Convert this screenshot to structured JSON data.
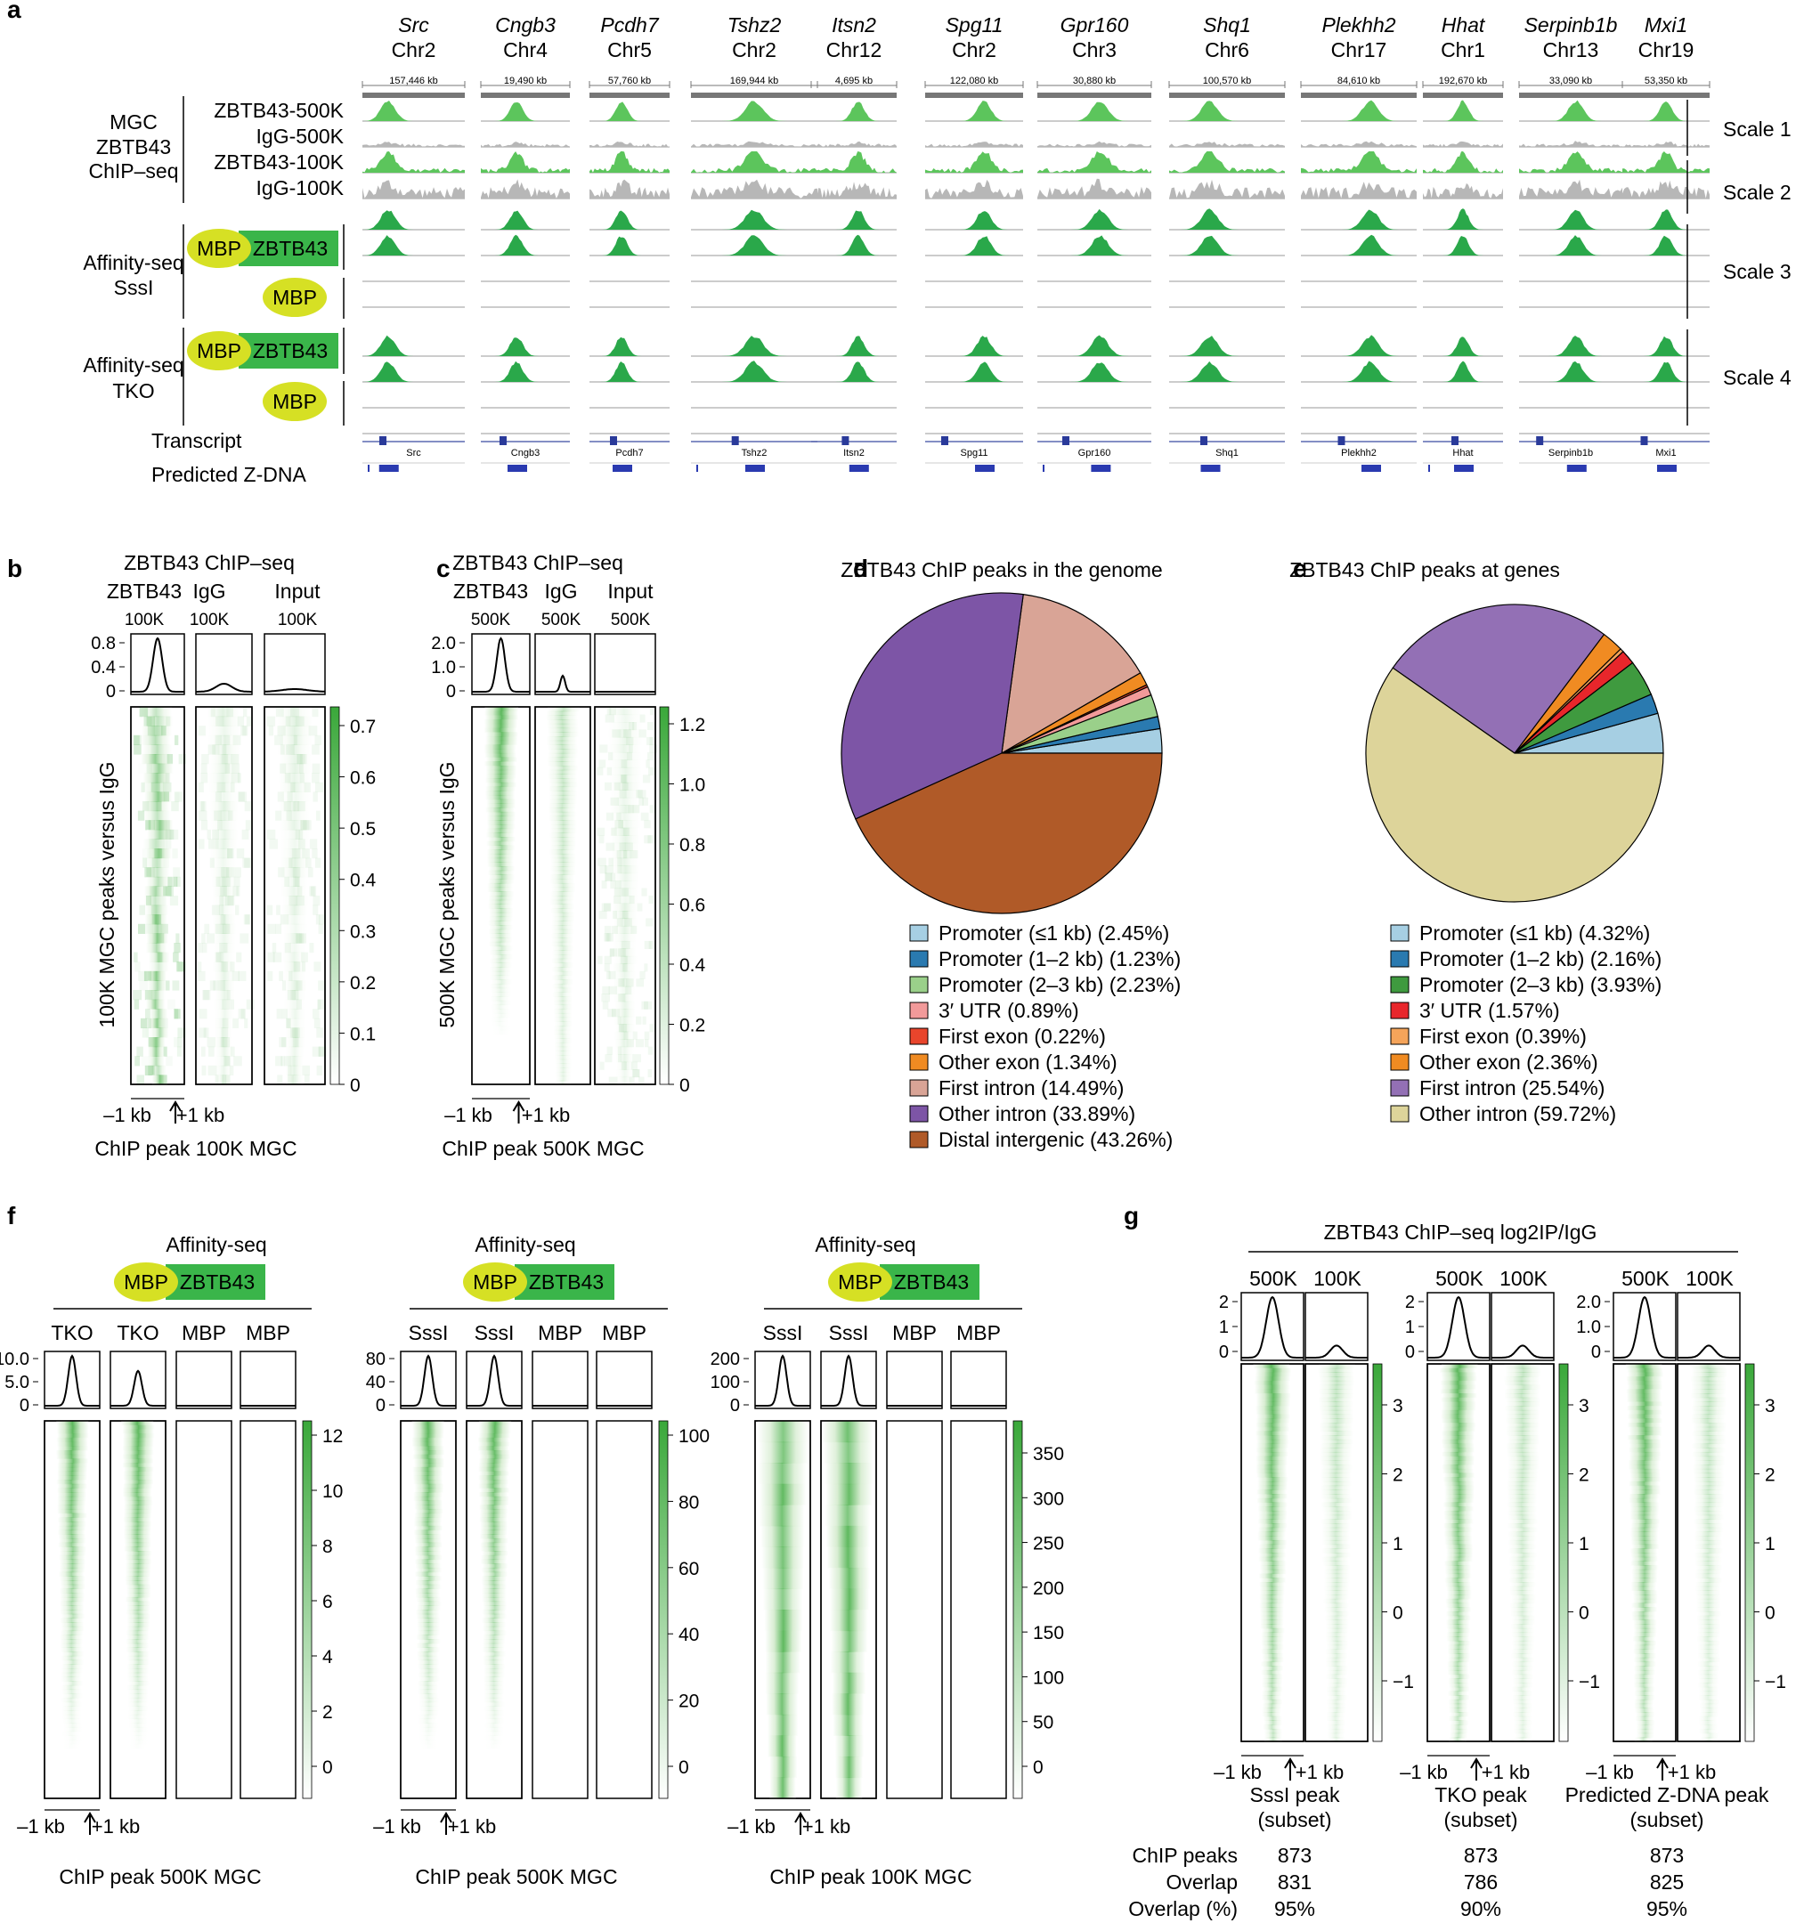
{
  "panel_letters": [
    "a",
    "b",
    "c",
    "d",
    "e",
    "f",
    "g"
  ],
  "panel_a": {
    "genes": [
      "Src",
      "Cngb3",
      "Pcdh7",
      "Tshz2",
      "Itsn2",
      "Spg11",
      "Gpr160",
      "Shq1",
      "Plekhh2",
      "Hhat",
      "Serpinb1b",
      "Mxi1"
    ],
    "chromosomes": [
      "Chr2",
      "Chr4",
      "Chr5",
      "Chr2",
      "Chr12",
      "Chr2",
      "Chr3",
      "Chr6",
      "Chr17",
      "Chr1",
      "Chr13",
      "Chr19"
    ],
    "coordinates": [
      "157,446 kb",
      "19,490 kb",
      "57,760 kb",
      "169,944 kb",
      "4,695 kb",
      "122,080 kb",
      "30,880 kb",
      "100,570 kb",
      "84,610 kb",
      "192,670 kb",
      "33,090 kb",
      "53,350 kb"
    ],
    "transcript_labels": [
      "Src",
      "Cngb3",
      "Pcdh7",
      "Tshz2",
      "Itsn2",
      "Spg11",
      "Gpr160",
      "Shq1",
      "Plekhh2",
      "Hhat",
      "Serpinb1b",
      "Mxi1"
    ],
    "group1_label": [
      "MGC",
      "ZBTB43",
      "ChIP–seq"
    ],
    "track_labels": [
      "ZBTB43-500K",
      "IgG-500K",
      "ZBTB43-100K",
      "IgG-100K"
    ],
    "group2_label": [
      "Affinity-seq",
      "SssI"
    ],
    "group3_label": [
      "Affinity-seq",
      "TKO"
    ],
    "mbp": "MBP",
    "zbtb43": "ZBTB43",
    "transcript": "Transcript",
    "predicted_zdna": "Predicted Z-DNA",
    "scales": [
      "Scale 1",
      "Scale 2",
      "Scale 3",
      "Scale 4"
    ]
  },
  "panel_b": {
    "title": "ZBTB43 ChIP–seq",
    "columns": [
      [
        "ZBTB43",
        "100K"
      ],
      [
        "IgG",
        "100K"
      ],
      [
        "Input",
        "100K"
      ]
    ],
    "profile_ticks": [
      "0.8",
      "0.4",
      "0"
    ],
    "colorbar_ticks": [
      "0.7",
      "0.6",
      "0.5",
      "0.4",
      "0.3",
      "0.2",
      "0.1",
      "0"
    ],
    "ylabel": "100K MGC peaks versus IgG",
    "x_left": "–1 kb",
    "x_right": "+1 kb",
    "xlabel": "ChIP peak 100K MGC"
  },
  "panel_c": {
    "title": "ZBTB43 ChIP–seq",
    "columns": [
      [
        "ZBTB43",
        "500K"
      ],
      [
        "IgG",
        "500K"
      ],
      [
        "Input",
        "500K"
      ]
    ],
    "profile_ticks": [
      "2.0",
      "1.0",
      "0"
    ],
    "colorbar_ticks": [
      "1.2",
      "1.0",
      "0.8",
      "0.6",
      "0.4",
      "0.2",
      "0"
    ],
    "ylabel": "500K MGC peaks versus IgG",
    "x_left": "–1 kb",
    "x_right": "+1 kb",
    "xlabel": "ChIP peak 500K MGC"
  },
  "chart_data": [
    {
      "type": "pie",
      "title": "ZBTB43 ChIP peaks in the genome",
      "labels": [
        "Promoter (≤1 kb) (2.45%)",
        "Promoter (1–2 kb) (1.23%)",
        "Promoter (2–3 kb) (2.23%)",
        "3′ UTR (0.89%)",
        "First exon (0.22%)",
        "Other exon (1.34%)",
        "First intron (14.49%)",
        "Other intron (33.89%)",
        "Distal intergenic (43.26%)"
      ],
      "values": [
        2.45,
        1.23,
        2.23,
        0.89,
        0.22,
        1.34,
        14.49,
        33.89,
        43.26
      ],
      "colors": [
        "#a6cfe3",
        "#2a7ab0",
        "#9ad08a",
        "#f29a9a",
        "#e8452c",
        "#f08b22",
        "#d9a496",
        "#7d55a6",
        "#b05a28"
      ]
    },
    {
      "type": "pie",
      "title": "ZBTB43 ChIP peaks at genes",
      "labels": [
        "Promoter (≤1 kb) (4.32%)",
        "Promoter (1–2 kb) (2.16%)",
        "Promoter (2–3 kb) (3.93%)",
        "3′ UTR (1.57%)",
        "First exon (0.39%)",
        "Other exon (2.36%)",
        "First intron (25.54%)",
        "Other intron (59.72%)"
      ],
      "values": [
        4.32,
        2.16,
        3.93,
        1.57,
        0.39,
        2.36,
        25.54,
        59.72
      ],
      "colors": [
        "#a6cfe3",
        "#2a7ab0",
        "#3f9a3f",
        "#e8262b",
        "#f5a45a",
        "#f08b22",
        "#9370b5",
        "#ddd49a"
      ]
    }
  ],
  "panel_f": {
    "groups": [
      {
        "header": "Affinity-seq",
        "cols": [
          "TKO",
          "TKO",
          "MBP",
          "MBP"
        ],
        "profile_ticks": [
          "10.0",
          "5.0",
          "0"
        ],
        "colorbar_ticks": [
          "12",
          "10",
          "8",
          "6",
          "4",
          "2",
          "0"
        ],
        "xlabel": "ChIP peak 500K MGC"
      },
      {
        "header": "Affinity-seq",
        "cols": [
          "SssI",
          "SssI",
          "MBP",
          "MBP"
        ],
        "profile_ticks": [
          "80",
          "40",
          "0"
        ],
        "colorbar_ticks": [
          "100",
          "80",
          "60",
          "40",
          "20",
          "0"
        ],
        "xlabel": "ChIP peak 500K MGC"
      },
      {
        "header": "Affinity-seq",
        "cols": [
          "SssI",
          "SssI",
          "MBP",
          "MBP"
        ],
        "profile_ticks": [
          "200",
          "100",
          "0"
        ],
        "colorbar_ticks": [
          "350",
          "300",
          "250",
          "200",
          "150",
          "100",
          "50",
          "0"
        ],
        "xlabel": "ChIP peak 100K MGC"
      }
    ],
    "x_left": "–1 kb",
    "x_right": "+1 kb"
  },
  "panel_g": {
    "title": "ZBTB43 ChIP–seq log2IP/IgG",
    "groups": [
      {
        "cols": [
          "500K",
          "100K"
        ],
        "profile_ticks": [
          "2",
          "1",
          "0"
        ],
        "colorbar_ticks": [
          "3",
          "2",
          "1",
          "0",
          "−1"
        ],
        "peak": [
          "SssI peak",
          "(subset)"
        ],
        "chip_peaks": "873",
        "overlap": "831",
        "overlap_pct": "95%"
      },
      {
        "cols": [
          "500K",
          "100K"
        ],
        "profile_ticks": [
          "2",
          "1",
          "0"
        ],
        "colorbar_ticks": [
          "3",
          "2",
          "1",
          "0",
          "−1"
        ],
        "peak": [
          "TKO peak",
          "(subset)"
        ],
        "chip_peaks": "873",
        "overlap": "786",
        "overlap_pct": "90%"
      },
      {
        "cols": [
          "500K",
          "100K"
        ],
        "profile_ticks": [
          "2.0",
          "1.0",
          "0"
        ],
        "colorbar_ticks": [
          "3",
          "2",
          "1",
          "0",
          "−1"
        ],
        "peak": [
          "Predicted Z-DNA peak",
          "(subset)"
        ],
        "chip_peaks": "873",
        "overlap": "825",
        "overlap_pct": "95%"
      }
    ],
    "row_labels": [
      "ChIP peaks",
      "Overlap",
      "Overlap (%)"
    ],
    "x_left": "–1 kb",
    "x_right": "+1 kb"
  }
}
